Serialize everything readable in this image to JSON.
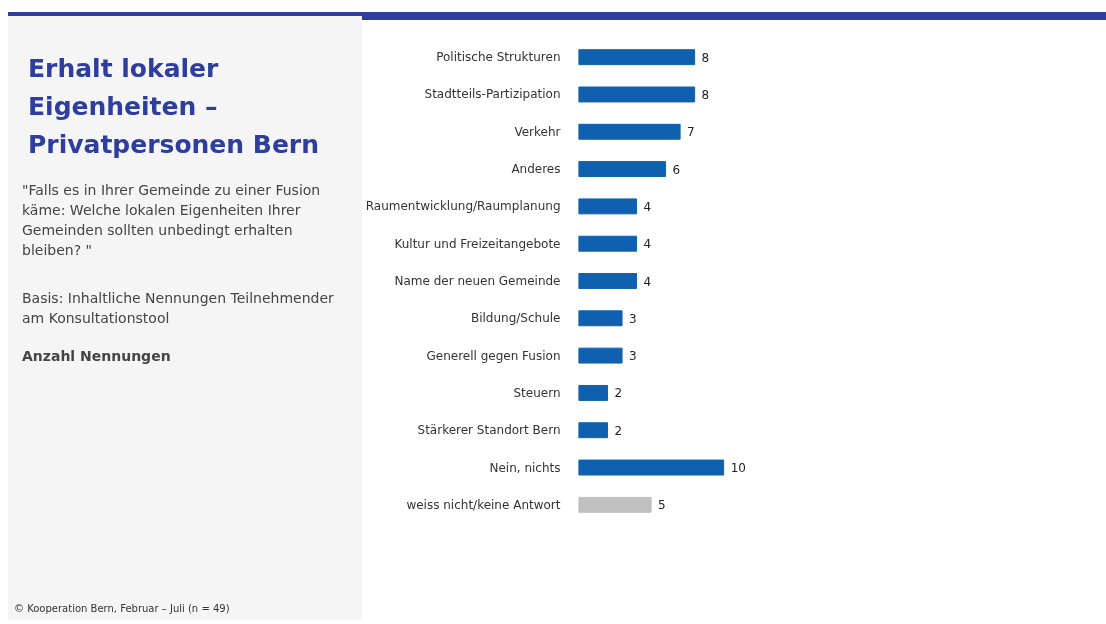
{
  "chart_data": {
    "type": "bar",
    "orientation": "horizontal",
    "title": "Erhalt lokaler Eigenheiten – Privatpersonen Bern",
    "subtitle": "\"Falls es in Ihrer Gemeinde zu einer Fusion käme: Welche lokalen Eigenheiten Ihrer Gemeinden sollten unbedingt erhalten bleiben?  \"",
    "annotations": [
      "Basis: Inhaltliche Nennungen Teilnehmender am Konsultationstool",
      "Anzahl Nennungen",
      "© Kooperation Bern, Februar – Juli (n = 49)"
    ],
    "categories": [
      "Politische Strukturen",
      "Stadtteils-Partizipation",
      "Verkehr",
      "Anderes",
      "Raumentwicklung/Raumplanung",
      "Kultur und Freizeitangebote",
      "Name der neuen Gemeinde",
      "Bildung/Schule",
      "Generell gegen Fusion",
      "Steuern",
      "Stärkerer Standort Bern",
      "Nein, nichts",
      "weiss nicht/keine Antwort"
    ],
    "values": [
      8,
      8,
      7,
      6,
      4,
      4,
      4,
      3,
      3,
      2,
      2,
      10,
      5
    ],
    "colors": [
      "#1060b0",
      "#1060b0",
      "#1060b0",
      "#1060b0",
      "#1060b0",
      "#1060b0",
      "#1060b0",
      "#1060b0",
      "#1060b0",
      "#1060b0",
      "#1060b0",
      "#1060b0",
      "#c0c0c0"
    ],
    "data_labels": true,
    "tick_labels": "y",
    "grid": false
  }
}
